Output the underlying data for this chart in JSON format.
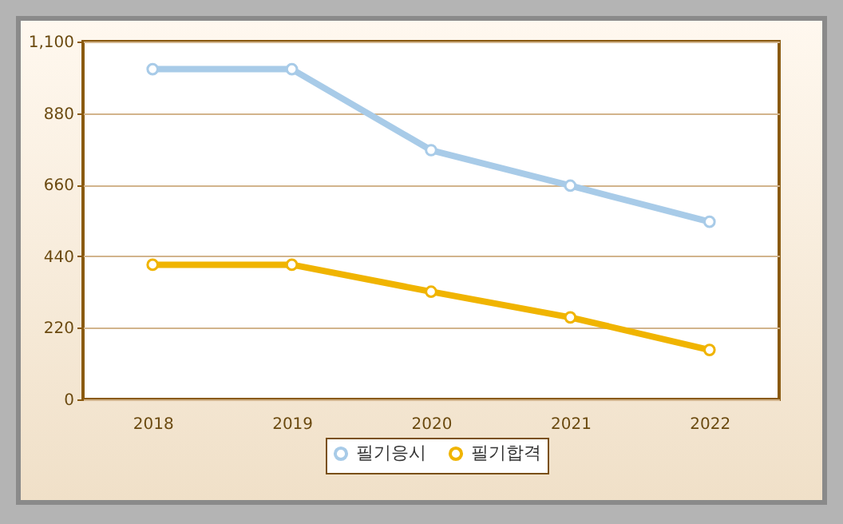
{
  "chart_data": {
    "type": "line",
    "categories": [
      "2018",
      "2019",
      "2020",
      "2021",
      "2022"
    ],
    "series": [
      {
        "name": "필기응시",
        "color": "#a8cbe8",
        "values": [
          1015,
          1015,
          766,
          657,
          546
        ]
      },
      {
        "name": "필기합격",
        "color": "#f0b400",
        "values": [
          414,
          414,
          331,
          252,
          152
        ]
      }
    ],
    "ylim": [
      0,
      1100
    ],
    "yticks": [
      0,
      {
        "value": 220,
        "label": "220"
      },
      {
        "value": 440,
        "label": "440"
      },
      {
        "value": 660,
        "label": "660"
      },
      {
        "value": 880,
        "label": "880"
      },
      {
        "value": 1100,
        "label": "1,100"
      }
    ],
    "grid": "y",
    "legend": "bottom",
    "marker": "circle",
    "line_style": "solid"
  }
}
